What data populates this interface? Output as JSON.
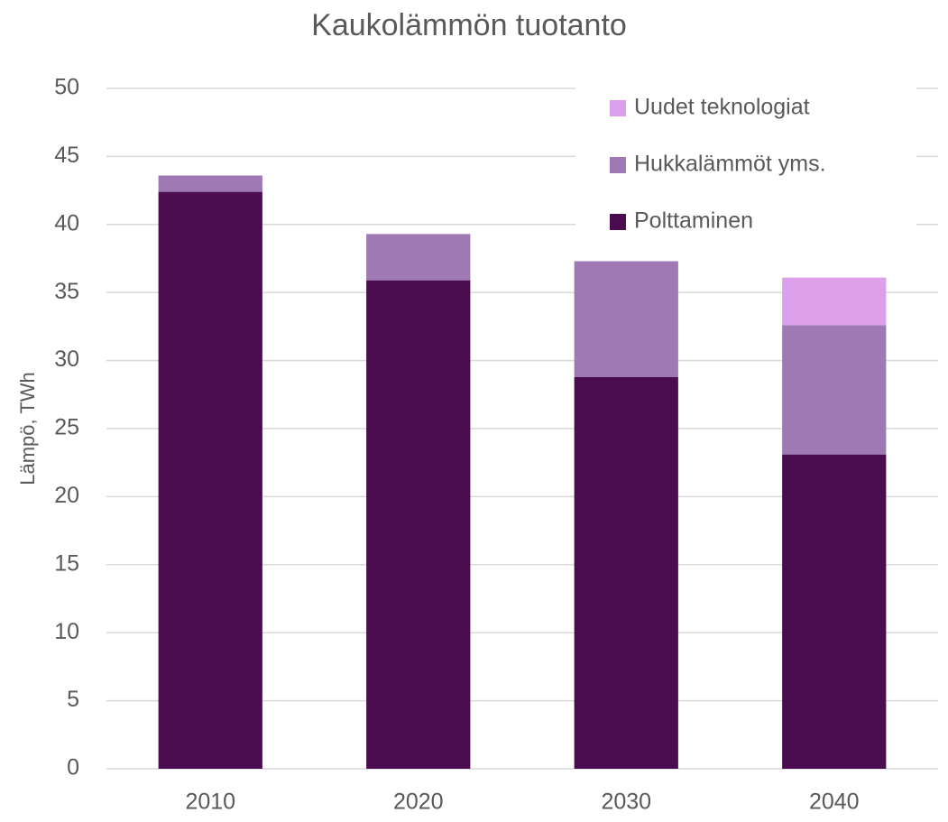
{
  "chart_data": {
    "type": "stacked_bar",
    "title": "Kaukolämmön tuotanto",
    "y_label": "Lämpö, TWh",
    "categories": [
      "2010",
      "2020",
      "2030",
      "2040"
    ],
    "series": [
      {
        "name": "Polttaminen",
        "color": "#4a0c4e",
        "values": [
          42.4,
          35.9,
          28.8,
          23.1
        ]
      },
      {
        "name": "Hukkalämmöt yms.",
        "color": "#9e79b3",
        "values": [
          1.2,
          3.4,
          8.5,
          9.5
        ]
      },
      {
        "name": "Uudet teknologiat",
        "color": "#dca0ea",
        "values": [
          0,
          0,
          0,
          3.5
        ]
      }
    ],
    "ylim": [
      0,
      50
    ],
    "yticks": [
      0,
      5,
      10,
      15,
      20,
      25,
      30,
      35,
      40,
      45,
      50
    ],
    "grid": true,
    "legend": "upper right"
  }
}
